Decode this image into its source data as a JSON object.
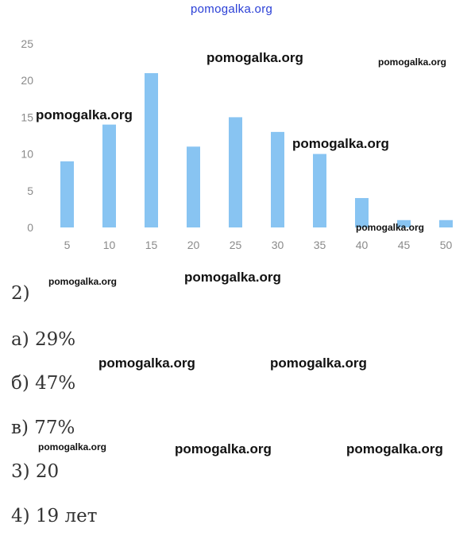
{
  "watermarks": {
    "site_top": "pomogalka.org",
    "marks": [
      "pomogalka.org",
      "pomogalka.org",
      "pomogalka.org",
      "pomogalka.org",
      "pomogalka.org",
      "pomogalka.org",
      "pomogalka.org",
      "pomogalka.org",
      "pomogalka.org",
      "pomogalka.org",
      "pomogalka.org",
      "pomogalka.org"
    ]
  },
  "chart_data": {
    "type": "bar",
    "categories": [
      "5",
      "10",
      "15",
      "20",
      "25",
      "30",
      "35",
      "40",
      "45",
      "50"
    ],
    "values": [
      9,
      14,
      21,
      11,
      15,
      13,
      10,
      4,
      1,
      1
    ],
    "yticks": [
      "0",
      "5",
      "10",
      "15",
      "20",
      "25"
    ],
    "ylim": [
      0,
      25
    ],
    "bar_color": "#88c4f2",
    "grid": false
  },
  "answers": [
    "2)",
    "а) 29%",
    "б) 47%",
    "в) 77%",
    "3) 20",
    "4) 19 лет"
  ]
}
